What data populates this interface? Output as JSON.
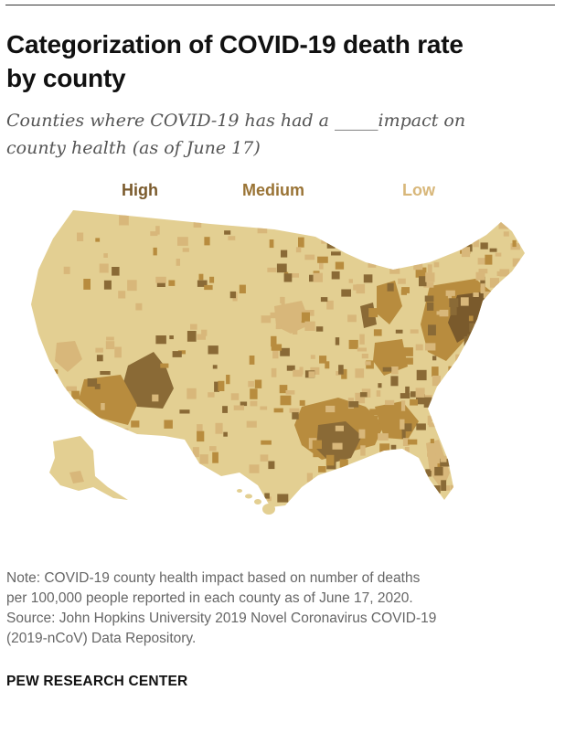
{
  "header": {
    "title_line1": "Categorization of COVID-19 death rate",
    "title_line2": "by county",
    "subtitle_line1": "Counties where COVID-19 has had a _____impact on",
    "subtitle_line2": "county health (as of June 17)"
  },
  "legend": {
    "items": [
      {
        "label": "High",
        "color": "#7a5a2c"
      },
      {
        "label": "Medium",
        "color": "#9a7436"
      },
      {
        "label": "Low",
        "color": "#d8b77a"
      }
    ]
  },
  "map": {
    "base_color": "#e3cf92",
    "low_color": "#d8b77a",
    "medium_color": "#b88c3e",
    "high_color": "#8a6a36"
  },
  "footer": {
    "note_line1": "Note: COVID-19 county health impact based on number of deaths",
    "note_line2": "per 100,000 people reported in each county as of June 17, 2020.",
    "note_line3": "Source: John Hopkins University 2019 Novel Coronavirus COVID-19",
    "note_line4": "(2019-nCoV) Data Repository.",
    "brand": "PEW RESEARCH CENTER"
  }
}
